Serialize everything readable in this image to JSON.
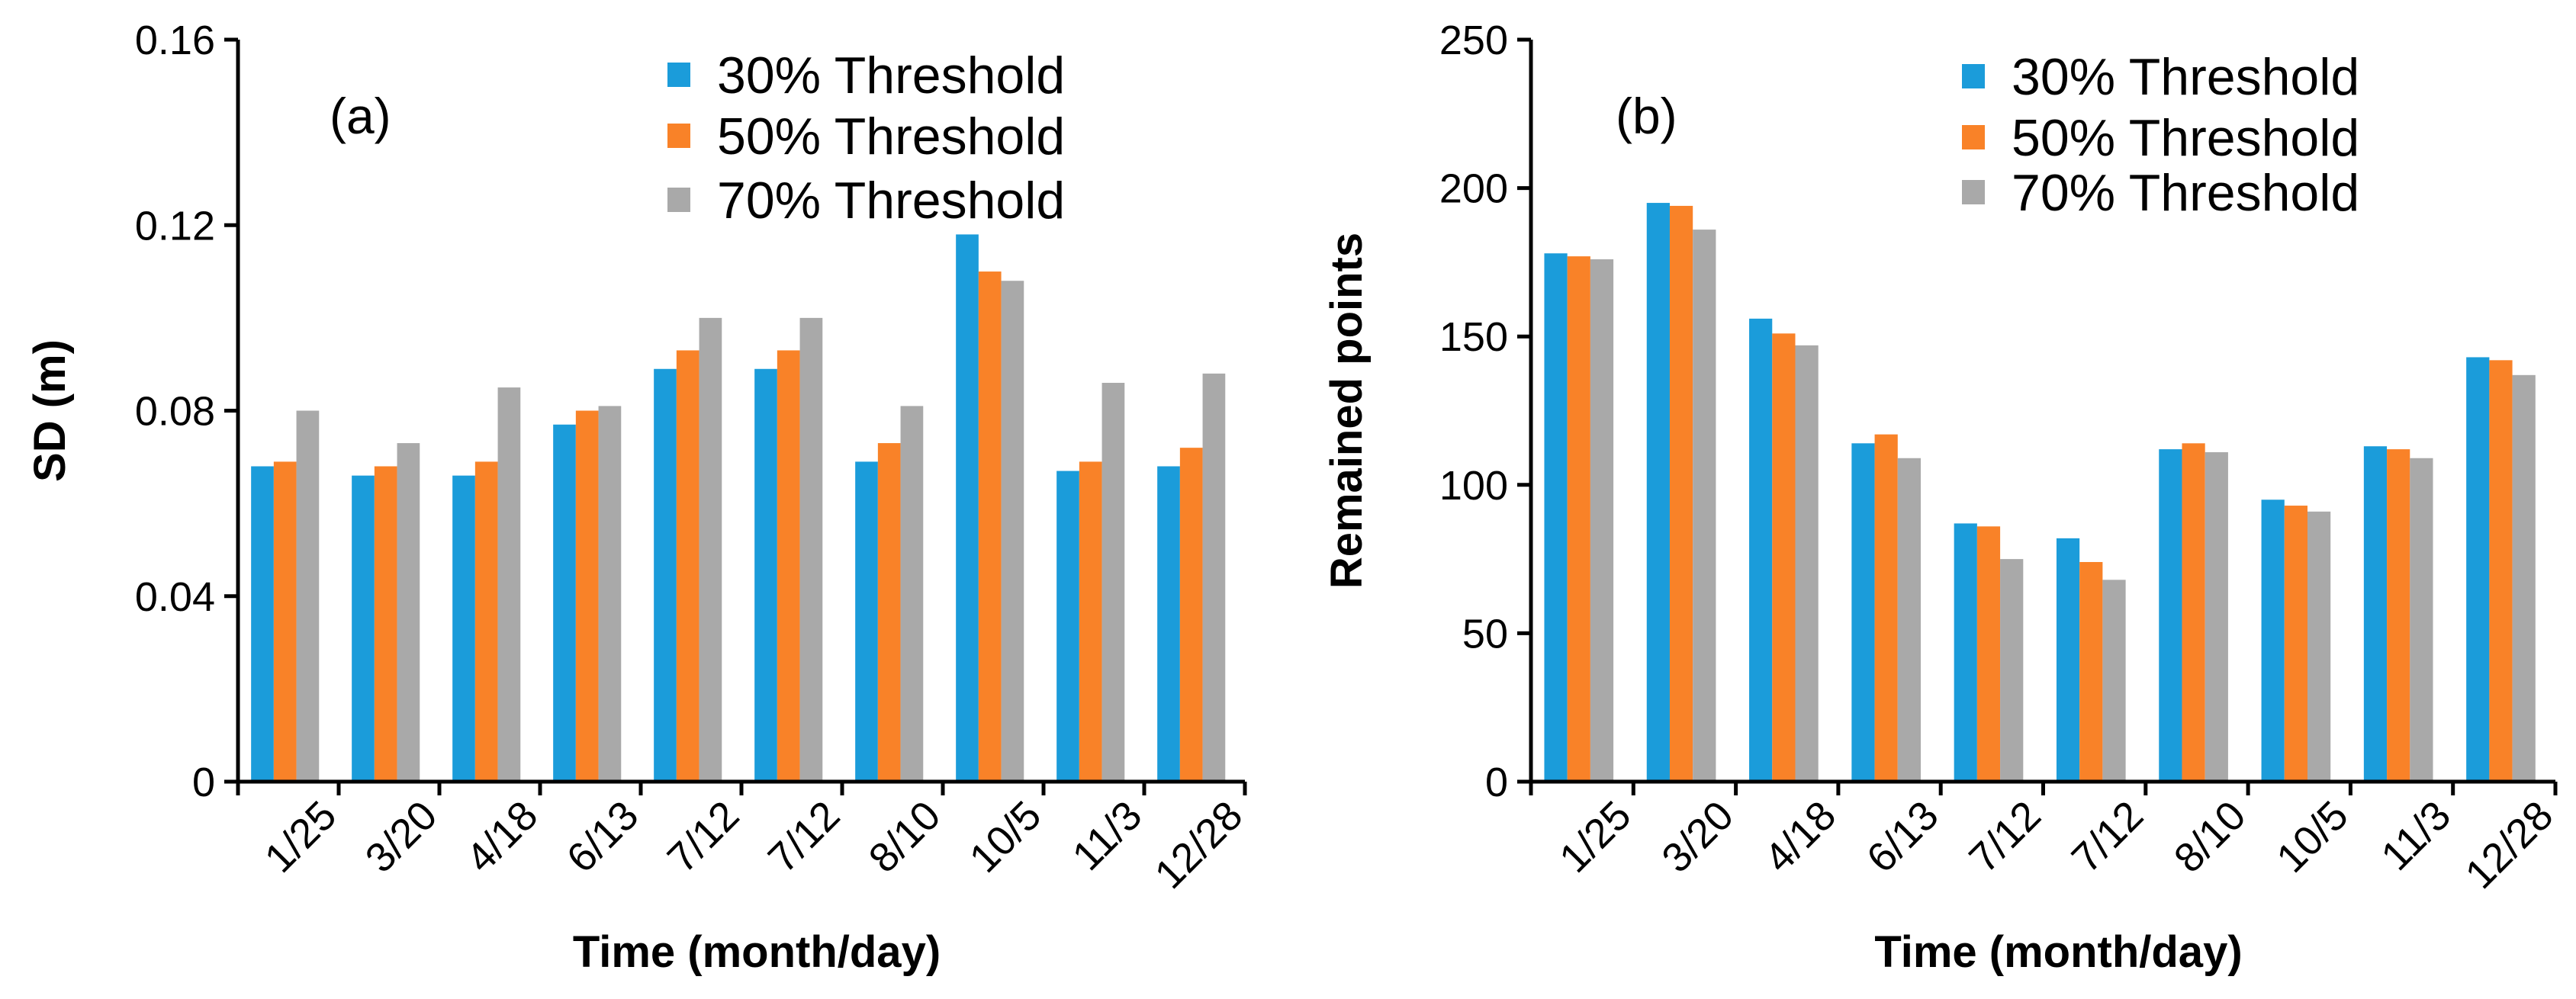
{
  "colors": {
    "s30": "#1B9CDA",
    "s50": "#F98228",
    "s70": "#A9A9A9"
  },
  "chart_data": [
    {
      "type": "bar",
      "panel_label": "(a)",
      "title": "",
      "xlabel": "Time (month/day)",
      "ylabel": "SD (m)",
      "ylim": [
        0,
        0.16
      ],
      "yticks": [
        0,
        0.04,
        0.08,
        0.12,
        0.16
      ],
      "ytick_labels": [
        "0",
        "0.04",
        "0.08",
        "0.12",
        "0.16"
      ],
      "categories": [
        "1/25",
        "3/20",
        "4/18",
        "6/13",
        "7/12",
        "7/12",
        "8/10",
        "10/5",
        "11/3",
        "12/28"
      ],
      "legend": [
        "30% Threshold",
        "50% Threshold",
        "70% Threshold"
      ],
      "series": [
        {
          "name": "30% Threshold",
          "values": [
            0.068,
            0.066,
            0.066,
            0.077,
            0.089,
            0.089,
            0.069,
            0.118,
            0.067,
            0.068
          ]
        },
        {
          "name": "50% Threshold",
          "values": [
            0.069,
            0.068,
            0.069,
            0.08,
            0.093,
            0.093,
            0.073,
            0.11,
            0.069,
            0.072
          ]
        },
        {
          "name": "70% Threshold",
          "values": [
            0.08,
            0.073,
            0.085,
            0.081,
            0.1,
            0.1,
            0.081,
            0.108,
            0.086,
            0.088
          ]
        }
      ]
    },
    {
      "type": "bar",
      "panel_label": "(b)",
      "title": "",
      "xlabel": "Time (month/day)",
      "ylabel": "Remained points",
      "ylim": [
        0,
        250
      ],
      "yticks": [
        0,
        50,
        100,
        150,
        200,
        250
      ],
      "ytick_labels": [
        "0",
        "50",
        "100",
        "150",
        "200",
        "250"
      ],
      "categories": [
        "1/25",
        "3/20",
        "4/18",
        "6/13",
        "7/12",
        "7/12",
        "8/10",
        "10/5",
        "11/3",
        "12/28"
      ],
      "legend": [
        "30% Threshold",
        "50% Threshold",
        "70% Threshold"
      ],
      "series": [
        {
          "name": "30% Threshold",
          "values": [
            178,
            195,
            156,
            114,
            87,
            82,
            112,
            95,
            113,
            143
          ]
        },
        {
          "name": "50% Threshold",
          "values": [
            177,
            194,
            151,
            117,
            86,
            74,
            114,
            93,
            112,
            142
          ]
        },
        {
          "name": "70% Threshold",
          "values": [
            176,
            186,
            147,
            109,
            75,
            68,
            111,
            91,
            109,
            137
          ]
        }
      ]
    }
  ]
}
